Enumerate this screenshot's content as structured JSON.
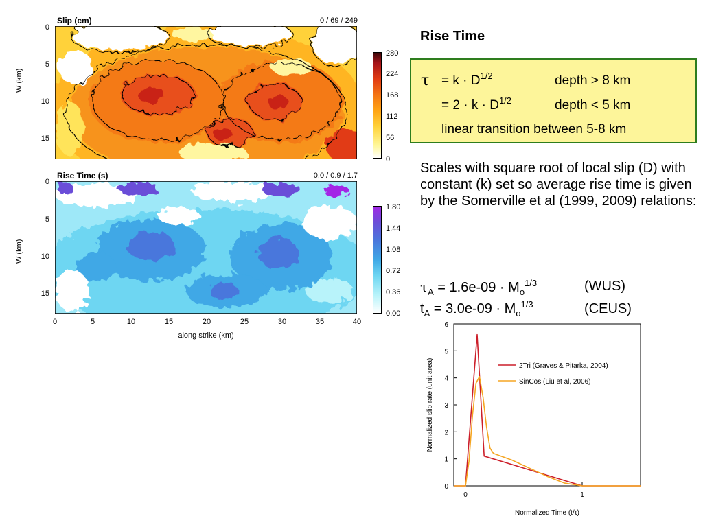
{
  "slip_panel": {
    "title": "Slip (cm)",
    "stats": "0 / 69 / 249",
    "ylabel": "W (km)",
    "yticks": [
      "0",
      "5",
      "10",
      "15"
    ],
    "colorbar_ticks": [
      "280",
      "224",
      "168",
      "112",
      "56",
      "0"
    ],
    "colors": [
      "#ffffff",
      "#fff799",
      "#ffd23a",
      "#ffa414",
      "#f47414",
      "#e13b14",
      "#a6141a",
      "#3a0507"
    ]
  },
  "rise_panel": {
    "title": "Rise Time (s)",
    "stats": "0.0 / 0.9 / 1.7",
    "ylabel": "W (km)",
    "yticks": [
      "0",
      "5",
      "10",
      "15"
    ],
    "xticks": [
      "0",
      "5",
      "10",
      "15",
      "20",
      "25",
      "30",
      "35",
      "40"
    ],
    "xlabel": "along strike (km)",
    "colorbar_ticks": [
      "1.80",
      "1.44",
      "1.08",
      "0.72",
      "0.36",
      "0.00"
    ],
    "colors": [
      "#ffffff",
      "#b8f3fa",
      "#6ed6f2",
      "#3fa8e6",
      "#4a77dc",
      "#6b4ed8",
      "#a328e6"
    ]
  },
  "text": {
    "heading": "Rise Time",
    "tau": "τ",
    "line1_eq": "= k · D",
    "line1_exp": "1/2",
    "line1_cond": "depth > 8 km",
    "line2_eq": "= 2 · k · D",
    "line2_exp": "1/2",
    "line2_cond": "depth < 5 km",
    "line3": "linear transition between 5-8 km",
    "paragraph": "Scales with square root of local slip (D) with constant (k) set so average rise time is given by the Somerville et al (1999, 2009) relations:",
    "f1_sym": "τ",
    "f1_sub": "A",
    "f1_eq": " = 1.6e-09 · M",
    "f1_osub": "o",
    "f1_exp": "1/3",
    "f1_tag": "(WUS)",
    "f2_sym": "t",
    "f2_sub": "A",
    "f2_eq": "  = 3.0e-09 · M",
    "f2_osub": "o",
    "f2_exp": "1/3",
    "f2_tag": "(CEUS)"
  },
  "chart_data": {
    "type": "line",
    "xlabel": "Normalized Time (t/τ)",
    "ylabel": "Normalized slip rate (unit area)",
    "xlim": [
      -0.1,
      1.5
    ],
    "ylim": [
      0,
      6
    ],
    "xticks": [
      "0",
      "1"
    ],
    "yticks": [
      "0",
      "1",
      "2",
      "3",
      "4",
      "5",
      "6"
    ],
    "legend_position": "top-right",
    "series": [
      {
        "name": "2Tri (Graves & Pitarka, 2004)",
        "color": "#cc1f2a",
        "x": [
          -0.1,
          0.0,
          0.1,
          0.16,
          1.0,
          1.5
        ],
        "y": [
          0,
          0,
          5.6,
          1.1,
          0,
          0
        ]
      },
      {
        "name": "SinCos (Liu et al, 2006)",
        "color": "#f5a623",
        "x": [
          -0.1,
          0.0,
          0.03,
          0.06,
          0.09,
          0.12,
          0.15,
          0.18,
          0.21,
          0.24,
          0.4,
          0.55,
          0.7,
          0.85,
          1.0,
          1.5
        ],
        "y": [
          0,
          0,
          0.9,
          2.6,
          3.8,
          4.05,
          3.3,
          2.2,
          1.4,
          1.2,
          0.95,
          0.65,
          0.35,
          0.1,
          0,
          0
        ]
      }
    ]
  }
}
